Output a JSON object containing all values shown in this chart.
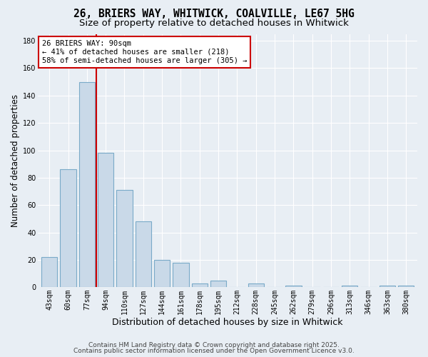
{
  "title": "26, BRIERS WAY, WHITWICK, COALVILLE, LE67 5HG",
  "subtitle": "Size of property relative to detached houses in Whitwick",
  "xlabel": "Distribution of detached houses by size in Whitwick",
  "ylabel": "Number of detached properties",
  "bar_labels": [
    "43sqm",
    "60sqm",
    "77sqm",
    "94sqm",
    "110sqm",
    "127sqm",
    "144sqm",
    "161sqm",
    "178sqm",
    "195sqm",
    "212sqm",
    "228sqm",
    "245sqm",
    "262sqm",
    "279sqm",
    "296sqm",
    "313sqm",
    "346sqm",
    "363sqm",
    "380sqm"
  ],
  "bar_heights": [
    22,
    86,
    150,
    98,
    71,
    48,
    20,
    18,
    3,
    5,
    0,
    3,
    0,
    1,
    0,
    0,
    1,
    0,
    1,
    1
  ],
  "bar_color": "#c9d9e8",
  "bar_edgecolor": "#7aaac8",
  "background_color": "#e8eef4",
  "grid_color": "#ffffff",
  "annotation_box_text": "26 BRIERS WAY: 90sqm\n← 41% of detached houses are smaller (218)\n58% of semi-detached houses are larger (305) →",
  "annotation_box_color": "#ffffff",
  "annotation_box_edgecolor": "#cc0000",
  "annotation_line_color": "#cc0000",
  "ylim": [
    0,
    185
  ],
  "yticks": [
    0,
    20,
    40,
    60,
    80,
    100,
    120,
    140,
    160,
    180
  ],
  "footer_line1": "Contains HM Land Registry data © Crown copyright and database right 2025.",
  "footer_line2": "Contains public sector information licensed under the Open Government Licence v3.0.",
  "title_fontsize": 10.5,
  "subtitle_fontsize": 9.5,
  "xlabel_fontsize": 9,
  "ylabel_fontsize": 8.5,
  "tick_fontsize": 7,
  "annotation_fontsize": 7.5,
  "footer_fontsize": 6.5
}
